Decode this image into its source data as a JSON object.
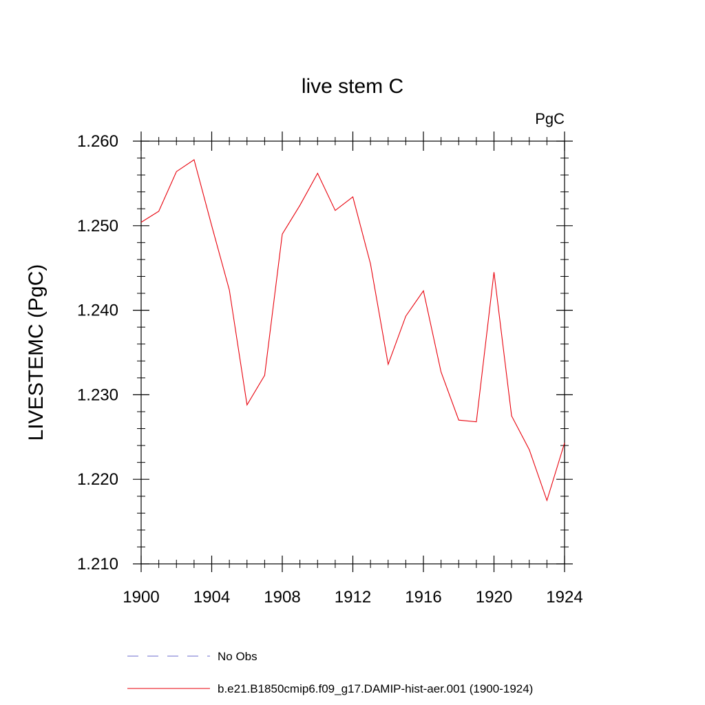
{
  "chart_data": {
    "type": "line",
    "title": "live stem C",
    "units": "PgC",
    "ylabel": "LIVESTEMC  (PgC)",
    "xlim": [
      1900,
      1924
    ],
    "ylim": [
      1.21,
      1.26
    ],
    "xticks": [
      1900,
      1904,
      1908,
      1912,
      1916,
      1920,
      1924
    ],
    "xtick_labels": [
      "1900",
      "1904",
      "1908",
      "1912",
      "1916",
      "1920",
      "1924"
    ],
    "yticks": [
      1.21,
      1.22,
      1.23,
      1.24,
      1.25,
      1.26
    ],
    "ytick_labels": [
      "1.210",
      "1.220",
      "1.230",
      "1.240",
      "1.250",
      "1.260"
    ],
    "grid": false,
    "legend_position": "bottom",
    "series": [
      {
        "name": "b.e21.B1850cmip6.f09_g17.DAMIP-hist-aer.001 (1900-1924)",
        "color": "#e8000b",
        "style": "solid",
        "x": [
          1900,
          1901,
          1902,
          1903,
          1904,
          1905,
          1906,
          1907,
          1908,
          1909,
          1910,
          1911,
          1912,
          1913,
          1914,
          1915,
          1916,
          1917,
          1918,
          1919,
          1920,
          1921,
          1922,
          1923,
          1924
        ],
        "y": [
          1.2504,
          1.2517,
          1.2564,
          1.2578,
          1.25,
          1.2424,
          1.2288,
          1.2323,
          1.249,
          1.2524,
          1.2562,
          1.2518,
          1.2534,
          1.2455,
          1.2336,
          1.2393,
          1.2423,
          1.2327,
          1.227,
          1.2268,
          1.2445,
          1.2275,
          1.2235,
          1.2175,
          1.2243
        ]
      }
    ],
    "legend": [
      {
        "label": "No Obs",
        "color": "#6a6acd",
        "style": "dashed"
      },
      {
        "label": "b.e21.B1850cmip6.f09_g17.DAMIP-hist-aer.001 (1900-1924)",
        "color": "#e8000b",
        "style": "solid"
      }
    ]
  }
}
